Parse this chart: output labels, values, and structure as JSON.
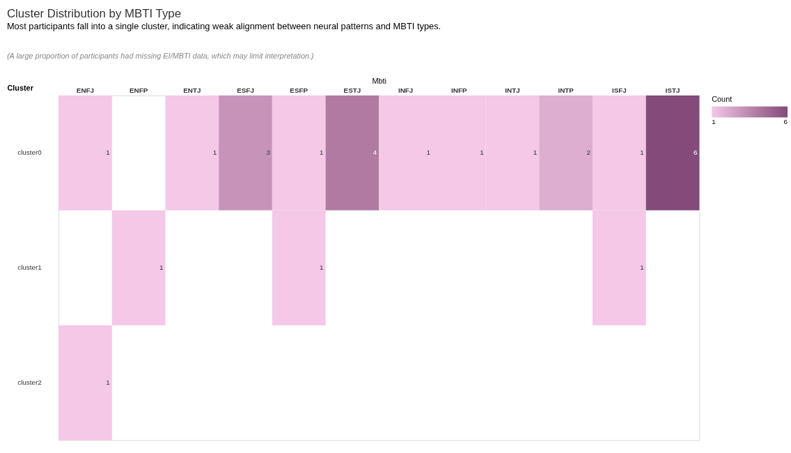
{
  "chart_data": {
    "type": "heatmap",
    "title": "Cluster Distribution by MBTI Type",
    "subtitle": "Most participants fall into a single cluster, indicating weak alignment between neural patterns and MBTI types.",
    "annotations": [
      "(A large proportion of participants had missing EI/MBTI data, which may limit interpretation.)"
    ],
    "xlabel": "Mbti",
    "ylabel": "Cluster",
    "legend_title": "Count",
    "categories": [
      "ENFJ",
      "ENFP",
      "ENTJ",
      "ESFJ",
      "ESFP",
      "ESTJ",
      "INFJ",
      "INFP",
      "INTJ",
      "INTP",
      "ISFJ",
      "ISTJ"
    ],
    "y_categories": [
      "cluster0",
      "cluster1",
      "cluster2"
    ],
    "cells": [
      [
        1,
        null,
        1,
        3,
        1,
        4,
        1,
        1,
        1,
        2,
        1,
        6
      ],
      [
        null,
        1,
        null,
        null,
        1,
        null,
        null,
        null,
        null,
        null,
        1,
        null
      ],
      [
        1,
        null,
        null,
        null,
        null,
        null,
        null,
        null,
        null,
        null,
        null,
        null
      ]
    ],
    "data_labels": true,
    "clim": [
      1,
      6
    ],
    "cticks": [
      1,
      6
    ],
    "grid": false
  }
}
